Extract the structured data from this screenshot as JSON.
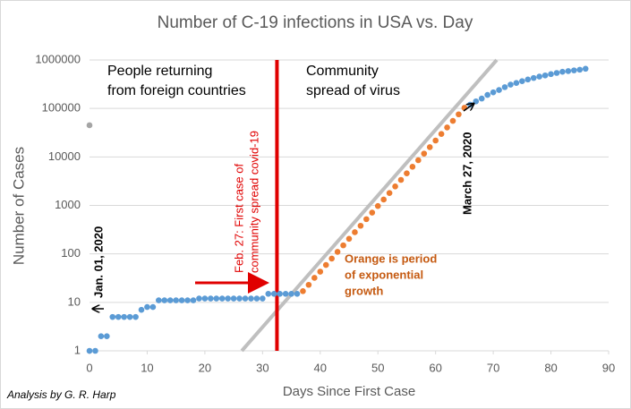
{
  "chart_data": {
    "type": "scatter",
    "title": "Number of C-19 infections in USA vs. Day",
    "xlabel": "Days Since First Case",
    "ylabel": "Number of Cases",
    "xlim": [
      0,
      90
    ],
    "xticks": [
      0,
      10,
      20,
      30,
      40,
      50,
      60,
      70,
      80,
      90
    ],
    "ylim": [
      1,
      1000000
    ],
    "yticks": [
      1,
      10,
      100,
      1000,
      10000,
      100000,
      1000000
    ],
    "log_y": true,
    "grid": true,
    "series": [
      {
        "color": "#5b9bd5",
        "x": [
          0,
          1,
          2,
          3,
          4,
          5,
          6,
          7,
          8,
          9,
          10,
          11,
          12,
          13,
          14,
          15,
          16,
          17,
          18,
          19,
          20,
          21,
          22,
          23,
          24,
          25,
          26,
          27,
          28,
          29,
          30,
          31,
          32,
          33,
          34,
          35,
          36
        ],
        "values": [
          1,
          1,
          2,
          2,
          5,
          5,
          5,
          5,
          5,
          7,
          8,
          8,
          11,
          11,
          11,
          11,
          11,
          11,
          11,
          12,
          12,
          12,
          12,
          12,
          12,
          12,
          12,
          12,
          12,
          12,
          12,
          15,
          15,
          15,
          15,
          15,
          15
        ]
      },
      {
        "color": "#ed7d31",
        "x": [
          37,
          38,
          39,
          40,
          41,
          42,
          43,
          44,
          45,
          46,
          47,
          48,
          49,
          50,
          51,
          52,
          53,
          54,
          55,
          56,
          57,
          58,
          59,
          60,
          61,
          62,
          63,
          64,
          65
        ],
        "values": [
          17,
          23,
          32,
          43,
          59,
          80,
          110,
          150,
          205,
          280,
          380,
          520,
          710,
          970,
          1320,
          1800,
          2460,
          3360,
          4590,
          6270,
          8560,
          11700,
          15900,
          21800,
          29700,
          40500,
          55400,
          75600,
          103000
        ]
      },
      {
        "color": "#5b9bd5",
        "x": [
          66,
          67,
          68,
          69,
          70,
          71,
          72,
          73,
          74,
          75,
          76,
          77,
          78,
          79,
          80,
          81,
          82,
          83,
          84,
          85,
          86
        ],
        "values": [
          120000,
          140000,
          160000,
          190000,
          215000,
          240000,
          275000,
          310000,
          335000,
          365000,
          395000,
          425000,
          455000,
          480000,
          510000,
          540000,
          570000,
          590000,
          610000,
          630000,
          660000
        ]
      },
      {
        "color": "#a5a5a5",
        "x": [
          0
        ],
        "values": [
          45000
        ]
      }
    ],
    "fit_line": {
      "color": "#bfbfbf",
      "x": [
        26.4,
        70.6
      ],
      "values": [
        1,
        1000000
      ]
    },
    "vline": {
      "x": 32.5,
      "color": "#e00000"
    },
    "annotations": [
      {
        "lines": [
          "People returning",
          "from foreign countries"
        ]
      },
      {
        "lines": [
          "Community",
          "spread of virus"
        ]
      },
      {
        "lines": [
          "Feb. 27:  First case of",
          "community  spread covid-19"
        ]
      },
      {
        "lines": [
          "Orange is period",
          "of exponential",
          "growth"
        ]
      },
      {
        "lines": [
          "Jan. 01, 2020"
        ]
      },
      {
        "lines": [
          "March 27, 2020"
        ]
      },
      {
        "lines": [
          "Analysis by G. R. Harp"
        ]
      }
    ]
  }
}
